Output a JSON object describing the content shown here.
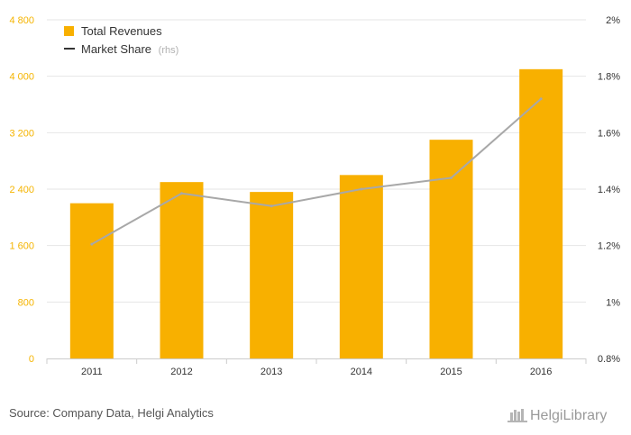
{
  "chart_data": {
    "type": "bar",
    "categories": [
      "2011",
      "2012",
      "2013",
      "2014",
      "2015",
      "2016"
    ],
    "series": [
      {
        "name": "Total Revenues",
        "type": "bar",
        "axis": "left",
        "values": [
          2200,
          2500,
          2360,
          2600,
          3100,
          4100
        ],
        "color": "#f8b000"
      },
      {
        "name": "Market Share",
        "type": "line",
        "axis": "right",
        "values": [
          1.205,
          1.385,
          1.34,
          1.4,
          1.44,
          1.72
        ],
        "color": "#a8a8a8"
      }
    ],
    "left_axis": {
      "min": 0,
      "max": 4800,
      "ticks": [
        "0",
        "800",
        "1 600",
        "2 400",
        "3 200",
        "4 000",
        "4 800"
      ]
    },
    "right_axis": {
      "min": 0.8,
      "max": 2.0,
      "ticks": [
        "0.8%",
        "1%",
        "1.2%",
        "1.4%",
        "1.6%",
        "1.8%",
        "2%"
      ]
    },
    "legend": {
      "position": "top-left",
      "items": [
        {
          "label": "Total Revenues",
          "marker": "square"
        },
        {
          "label": "Market Share",
          "suffix": "(rhs)",
          "marker": "line"
        }
      ]
    },
    "grid": "horizontal"
  },
  "source": "Source: Company Data, Helgi Analytics",
  "brand": "HelgiLibrary",
  "colors": {
    "bar": "#f8b000",
    "line": "#a8a8a8",
    "left_ticks": "#f5b400",
    "grid": "#e6e6e6"
  }
}
